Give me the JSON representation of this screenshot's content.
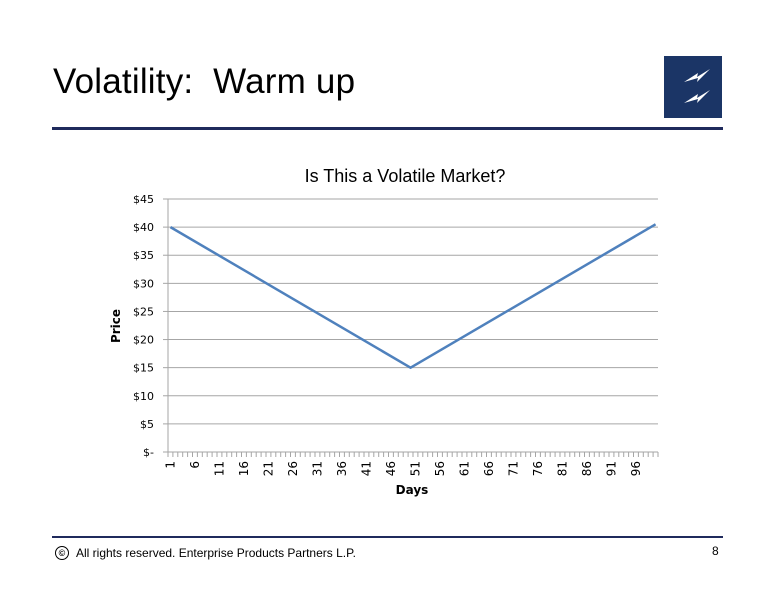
{
  "slide": {
    "title": "Volatility:  Warm up",
    "footer_text": "All rights reserved. Enterprise Products Partners L.P.",
    "copyright_symbol": "©",
    "page_number": "8",
    "logo_icon": "lightning-bolts-icon",
    "accent_color": "#1f2a5c",
    "logo_color": "#1b3566"
  },
  "chart_data": {
    "type": "line",
    "title": "Is This a Volatile Market?",
    "xlabel": "Days",
    "ylabel": "Price",
    "x_tick_labels": [
      "1",
      "6",
      "11",
      "16",
      "21",
      "26",
      "31",
      "36",
      "41",
      "46",
      "51",
      "56",
      "61",
      "66",
      "71",
      "76",
      "81",
      "86",
      "91",
      "96"
    ],
    "y_tick_labels": [
      "$-",
      "$5",
      "$10",
      "$15",
      "$20",
      "$25",
      "$30",
      "$35",
      "$40",
      "$45"
    ],
    "ylim": [
      0,
      45
    ],
    "xlim": [
      1,
      100
    ],
    "grid": "horizontal",
    "line_color": "#4f81bd",
    "series": [
      {
        "x": [
          1,
          50,
          100
        ],
        "values": [
          40,
          15,
          40.5
        ]
      }
    ]
  }
}
